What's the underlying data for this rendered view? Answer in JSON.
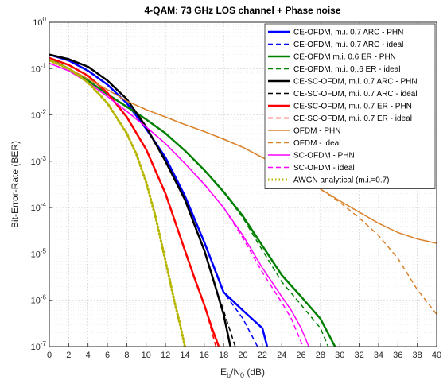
{
  "chart_data": {
    "type": "line",
    "title": "4-QAM: 73 GHz LOS channel + Phase noise",
    "xlabel": "Eb/N0 (dB)",
    "xlabel_main": "E",
    "xlabel_sub1": "b",
    "xlabel_mid": "/N",
    "xlabel_sub2": "0",
    "xlabel_tail": " (dB)",
    "ylabel": "Bit-Error-Rate (BER)",
    "x_scale": "linear",
    "y_scale": "log",
    "xlim": [
      0,
      40
    ],
    "ylim": [
      1e-07,
      1
    ],
    "x_ticks": [
      0,
      2,
      4,
      6,
      8,
      10,
      12,
      14,
      16,
      18,
      20,
      22,
      24,
      26,
      28,
      30,
      32,
      34,
      36,
      38,
      40
    ],
    "y_ticks": [
      {
        "value": 1,
        "base": "10",
        "exp": "0"
      },
      {
        "value": 0.1,
        "base": "10",
        "exp": "-1"
      },
      {
        "value": 0.01,
        "base": "10",
        "exp": "-2"
      },
      {
        "value": 0.001,
        "base": "10",
        "exp": "-3"
      },
      {
        "value": 0.0001,
        "base": "10",
        "exp": "-4"
      },
      {
        "value": 1e-05,
        "base": "10",
        "exp": "-5"
      },
      {
        "value": 1e-06,
        "base": "10",
        "exp": "-6"
      },
      {
        "value": 1e-07,
        "base": "10",
        "exp": "-7"
      }
    ],
    "grid": true,
    "minor_grid": true,
    "legend_position": "top-right",
    "series": [
      {
        "name": "CE-OFDM, m.i. 0.7 ARC - PHN",
        "color": "#0000ff",
        "dash": "solid",
        "width": 2.5,
        "x": [
          0,
          2,
          4,
          6,
          8,
          10,
          12,
          14,
          16,
          18,
          20,
          22,
          22.5
        ],
        "y": [
          0.2,
          0.15,
          0.09,
          0.045,
          0.018,
          0.005,
          0.0012,
          0.00018,
          1.8e-05,
          1.5e-06,
          6e-07,
          2.5e-07,
          1e-07
        ]
      },
      {
        "name": "CE-OFDM, m.i. 0.7 ARC - ideal",
        "color": "#0000ff",
        "dash": "dash",
        "width": 1.5,
        "x": [
          0,
          2,
          4,
          6,
          8,
          10,
          12,
          14,
          16,
          18,
          20,
          21.5
        ],
        "y": [
          0.2,
          0.15,
          0.09,
          0.045,
          0.018,
          0.005,
          0.0012,
          0.00018,
          1.8e-05,
          1.5e-06,
          4e-07,
          1e-07
        ]
      },
      {
        "name": "CE-OFDM m.i. 0.6  ER - PHN",
        "color": "#008000",
        "dash": "solid",
        "width": 2.5,
        "x": [
          0,
          2,
          4,
          6,
          8,
          10,
          12,
          14,
          16,
          18,
          20,
          22,
          24,
          26,
          28,
          29.5
        ],
        "y": [
          0.16,
          0.1,
          0.055,
          0.028,
          0.015,
          0.008,
          0.004,
          0.0017,
          0.00065,
          0.00022,
          6.5e-05,
          1.5e-05,
          3.5e-06,
          1.2e-06,
          4e-07,
          1e-07
        ]
      },
      {
        "name": "CE-OFDM, m.i. 0,.6 ER - ideal",
        "color": "#008000",
        "dash": "dash",
        "width": 1.5,
        "x": [
          0,
          2,
          4,
          6,
          8,
          10,
          12,
          14,
          16,
          18,
          20,
          22,
          24,
          26,
          28,
          28.8
        ],
        "y": [
          0.16,
          0.1,
          0.055,
          0.028,
          0.015,
          0.008,
          0.004,
          0.0017,
          0.00065,
          0.00022,
          6e-05,
          1.2e-05,
          2.5e-06,
          8e-07,
          2.5e-07,
          1e-07
        ]
      },
      {
        "name": "CE-SC-OFDM, m.i. 0.7 ARC - PHN",
        "color": "#000000",
        "dash": "solid",
        "width": 2.5,
        "x": [
          0,
          2,
          4,
          6,
          8,
          10,
          12,
          14,
          16,
          17,
          18,
          18.7
        ],
        "y": [
          0.2,
          0.16,
          0.11,
          0.055,
          0.022,
          0.0055,
          0.001,
          0.00015,
          1.2e-05,
          2.5e-06,
          5e-07,
          1e-07
        ]
      },
      {
        "name": "CE-SC-OFDM, m.i. 0.7 ARC - ideal",
        "color": "#000000",
        "dash": "dash",
        "width": 1.5,
        "x": [
          0,
          2,
          4,
          6,
          8,
          10,
          12,
          14,
          16,
          17,
          18,
          19.2
        ],
        "y": [
          0.2,
          0.16,
          0.11,
          0.055,
          0.022,
          0.0055,
          0.001,
          0.00015,
          1.2e-05,
          2.5e-06,
          6e-07,
          1e-07
        ]
      },
      {
        "name": "CE-SC-OFDM, m.i. 0.7  ER - PHN",
        "color": "#ff0000",
        "dash": "solid",
        "width": 2.5,
        "x": [
          0,
          2,
          4,
          6,
          8,
          10,
          12,
          14,
          15,
          16,
          16.8,
          17.5
        ],
        "y": [
          0.17,
          0.12,
          0.07,
          0.03,
          0.009,
          0.0018,
          0.0002,
          1.2e-05,
          3e-06,
          8e-07,
          2.5e-07,
          1e-07
        ]
      },
      {
        "name": "CE-SC-OFDM, m.i. 0.7 ER - ideal",
        "color": "#ff0000",
        "dash": "dash",
        "width": 1.5,
        "x": [
          0,
          2,
          4,
          6,
          8,
          10,
          12,
          14,
          15,
          16,
          16.5,
          17.2
        ],
        "y": [
          0.17,
          0.12,
          0.07,
          0.03,
          0.009,
          0.0018,
          0.0002,
          1.2e-05,
          3e-06,
          8e-07,
          3.5e-07,
          1e-07
        ]
      },
      {
        "name": "OFDM - PHN",
        "color": "#d9822b",
        "dash": "solid",
        "width": 1.5,
        "x": [
          0,
          2,
          4,
          6,
          8,
          10,
          12,
          14,
          16,
          18,
          20,
          22,
          24,
          26,
          28,
          30,
          32,
          34,
          36,
          38,
          40
        ],
        "y": [
          0.16,
          0.1,
          0.06,
          0.035,
          0.02,
          0.013,
          0.009,
          0.0062,
          0.0044,
          0.003,
          0.002,
          0.0012,
          0.00075,
          0.00045,
          0.00025,
          0.00014,
          8e-05,
          4.6e-05,
          2.9e-05,
          2.1e-05,
          1.7e-05
        ]
      },
      {
        "name": "OFDM - ideal",
        "color": "#d9822b",
        "dash": "dash",
        "width": 1.5,
        "x": [
          0,
          2,
          4,
          6,
          8,
          10,
          12,
          14,
          16,
          18,
          20,
          22,
          24,
          26,
          28,
          30,
          32,
          34,
          36,
          38,
          40
        ],
        "y": [
          0.16,
          0.1,
          0.06,
          0.035,
          0.02,
          0.013,
          0.009,
          0.0062,
          0.0044,
          0.003,
          0.002,
          0.0012,
          0.00075,
          0.00045,
          0.00025,
          0.00013,
          6e-05,
          2.5e-05,
          8e-06,
          1.7e-06,
          5e-07
        ]
      },
      {
        "name": "SC-OFDM - PHN",
        "color": "#ff00ff",
        "dash": "solid",
        "width": 1.5,
        "x": [
          0,
          2,
          4,
          6,
          8,
          10,
          12,
          14,
          16,
          18,
          20,
          22,
          24,
          25,
          26,
          26.8
        ],
        "y": [
          0.13,
          0.09,
          0.05,
          0.025,
          0.012,
          0.0055,
          0.0024,
          0.0009,
          0.00032,
          0.0001,
          2.5e-05,
          5e-06,
          1.2e-06,
          6e-07,
          2.5e-07,
          1e-07
        ]
      },
      {
        "name": "SC-OFDM - ideal",
        "color": "#ff00ff",
        "dash": "dash",
        "width": 1.5,
        "x": [
          0,
          2,
          4,
          6,
          8,
          10,
          12,
          14,
          16,
          18,
          20,
          22,
          24,
          25,
          26.2
        ],
        "y": [
          0.13,
          0.09,
          0.05,
          0.025,
          0.012,
          0.0055,
          0.0024,
          0.0009,
          0.00032,
          0.0001,
          2.2e-05,
          4e-06,
          9e-07,
          4e-07,
          1e-07
        ]
      },
      {
        "name": "AWGN analytical (m.i.=0.7)",
        "color": "#b5b500",
        "dash": "dot",
        "width": 3,
        "x": [
          0,
          2,
          4,
          6,
          8,
          9,
          10,
          11,
          12,
          13,
          13.5,
          14,
          14.3
        ],
        "y": [
          0.15,
          0.1,
          0.05,
          0.018,
          0.004,
          0.0014,
          0.00035,
          6e-05,
          7e-06,
          8e-07,
          3e-07,
          1e-07,
          5e-08
        ]
      }
    ]
  }
}
